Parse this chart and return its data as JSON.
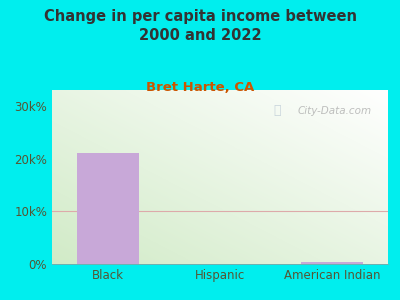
{
  "title": "Change in per capita income between\n2000 and 2022",
  "subtitle": "Bret Harte, CA",
  "categories": [
    "Black",
    "Hispanic",
    "American Indian"
  ],
  "values": [
    21000,
    0,
    300
  ],
  "bar_color": "#c8a8d8",
  "background_color": "#00EEEE",
  "title_color": "#333333",
  "subtitle_color": "#cc5500",
  "tick_label_color": "#555533",
  "yticks": [
    0,
    10000,
    20000,
    30000
  ],
  "ytick_labels": [
    "0%",
    "10k%",
    "20k%",
    "30k%"
  ],
  "ylim": [
    0,
    33000
  ],
  "watermark": "City-Data.com",
  "watermark_color": "#aaaaaa",
  "grid_color": "#ddaaaa",
  "title_fontsize": 10.5,
  "subtitle_fontsize": 9.5
}
